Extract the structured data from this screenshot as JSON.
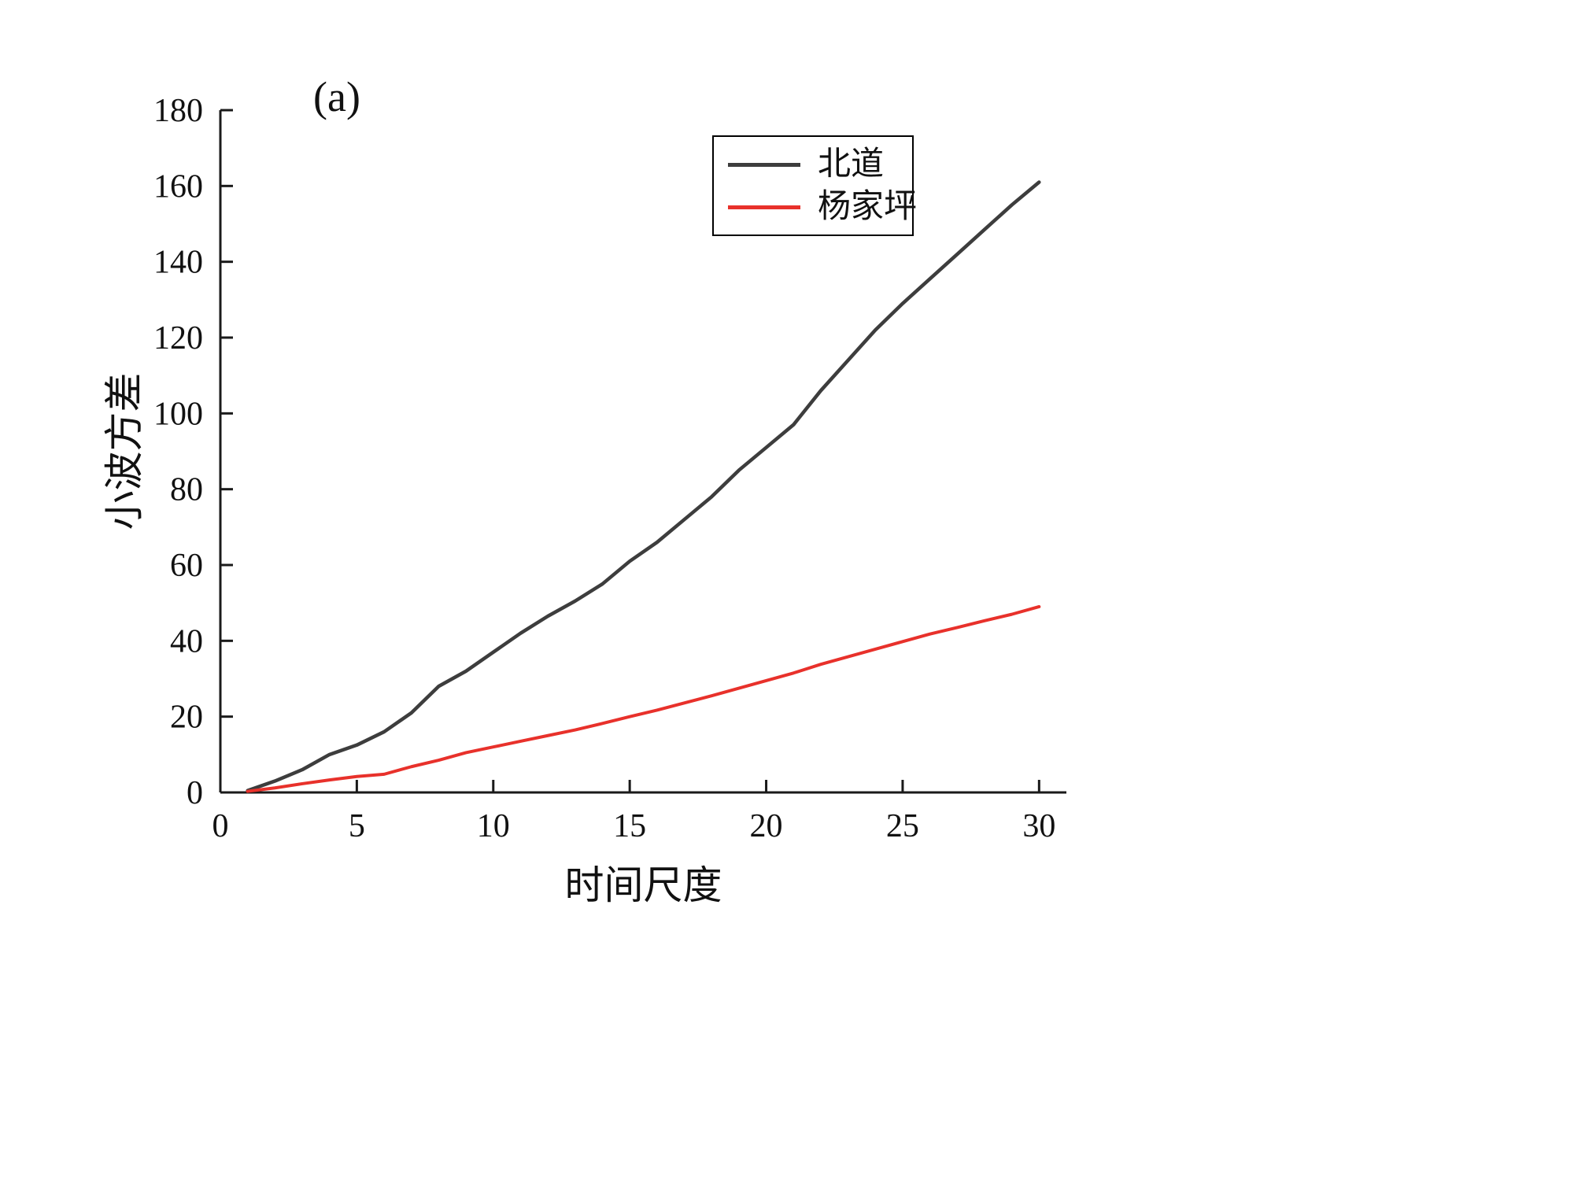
{
  "figure": {
    "panel_label": "(a)",
    "background": "#ffffff"
  },
  "chart_data": {
    "type": "line",
    "title": "(a)",
    "xlabel": "时间尺度",
    "ylabel": "小波方差",
    "xlim": [
      0,
      31
    ],
    "ylim": [
      0,
      180
    ],
    "x_ticks": [
      0,
      5,
      10,
      15,
      20,
      25,
      30
    ],
    "y_ticks": [
      0,
      20,
      40,
      60,
      80,
      100,
      120,
      140,
      160,
      180
    ],
    "grid": false,
    "legend_position": "upper-right",
    "axis_color": "#1a1a1a",
    "series": [
      {
        "name": "北道",
        "color": "#3d3d3d",
        "line_width": 4.5,
        "x": [
          1,
          2,
          3,
          4,
          5,
          6,
          7,
          8,
          9,
          10,
          11,
          12,
          13,
          14,
          15,
          16,
          17,
          18,
          19,
          20,
          21,
          22,
          23,
          24,
          25,
          26,
          27,
          28,
          29,
          30
        ],
        "y": [
          0.5,
          3,
          6,
          10,
          12.5,
          16,
          21,
          28,
          32,
          37,
          42,
          46.5,
          50.5,
          55,
          61,
          66,
          72,
          78,
          85,
          91,
          97,
          106,
          114,
          122,
          129,
          135.5,
          142,
          148.5,
          155,
          161
        ]
      },
      {
        "name": "杨家坪",
        "color": "#e8312b",
        "line_width": 4,
        "x": [
          1,
          2,
          3,
          4,
          5,
          6,
          7,
          8,
          9,
          10,
          11,
          12,
          13,
          14,
          15,
          16,
          17,
          18,
          19,
          20,
          21,
          22,
          23,
          24,
          25,
          26,
          27,
          28,
          29,
          30
        ],
        "y": [
          0.3,
          1.2,
          2.3,
          3.3,
          4.2,
          4.8,
          6.8,
          8.5,
          10.5,
          12,
          13.5,
          15,
          16.5,
          18.2,
          20,
          21.7,
          23.6,
          25.5,
          27.5,
          29.5,
          31.5,
          33.8,
          35.8,
          37.8,
          39.8,
          41.8,
          43.5,
          45.3,
          47,
          49
        ]
      }
    ]
  }
}
